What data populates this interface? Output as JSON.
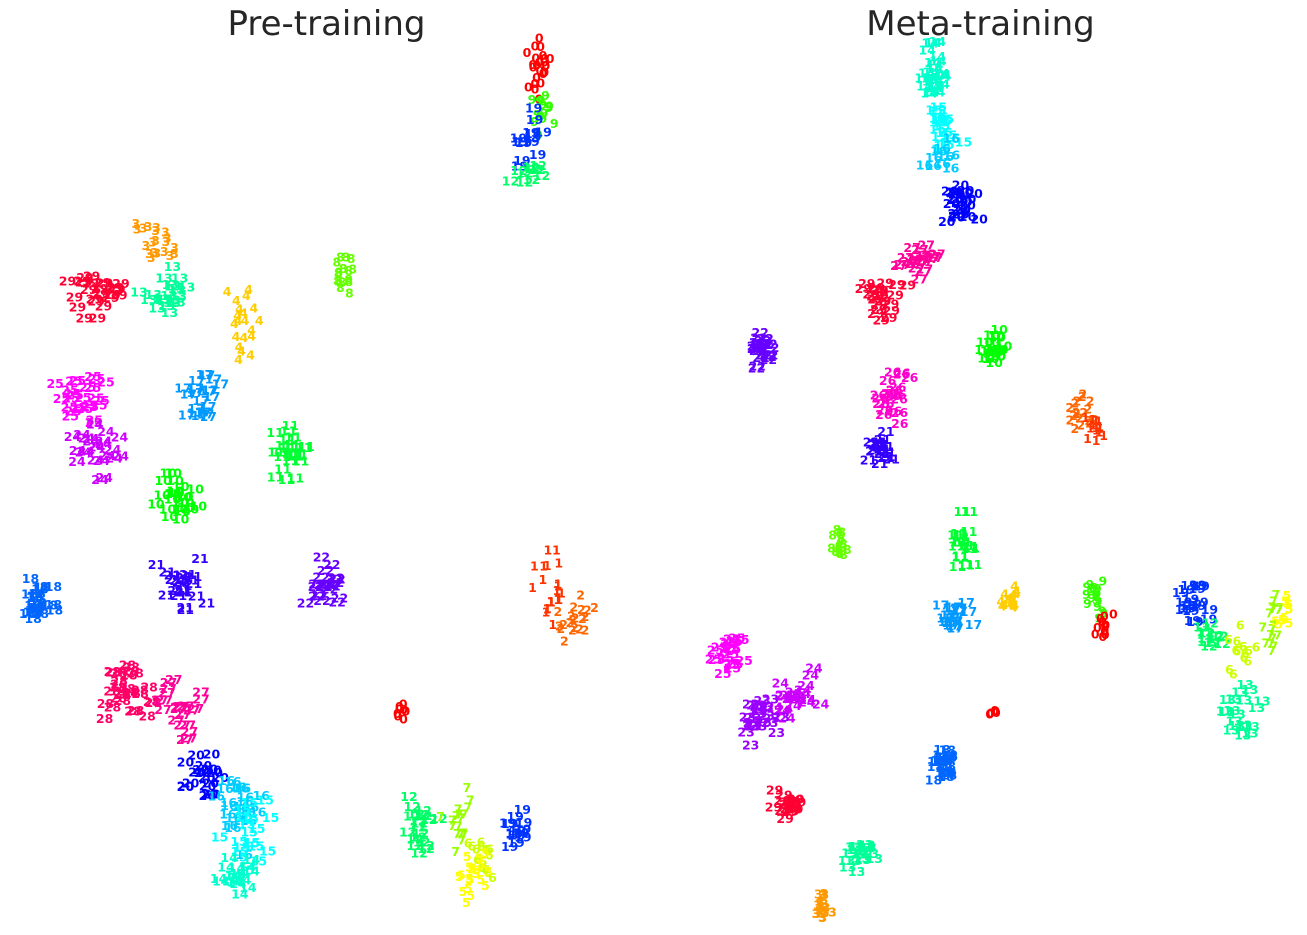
{
  "chart_data": [
    {
      "type": "scatter",
      "title": "Pre-training",
      "xlabel": "",
      "ylabel": "",
      "xlim": [
        0,
        653
      ],
      "ylim": [
        0,
        935
      ],
      "grid": false,
      "legend": "none",
      "mark": "class label digits",
      "clusters": [
        {
          "label": "0",
          "x": 540,
          "y": 65,
          "sx": 10,
          "sy": 28,
          "n": 24
        },
        {
          "label": "9",
          "x": 545,
          "y": 110,
          "sx": 10,
          "sy": 25,
          "n": 14
        },
        {
          "label": "19",
          "x": 525,
          "y": 140,
          "sx": 15,
          "sy": 25,
          "n": 14
        },
        {
          "label": "12",
          "x": 530,
          "y": 175,
          "sx": 15,
          "sy": 15,
          "n": 10
        },
        {
          "label": "3",
          "x": 155,
          "y": 240,
          "sx": 15,
          "sy": 20,
          "n": 20
        },
        {
          "label": "29",
          "x": 100,
          "y": 295,
          "sx": 25,
          "sy": 20,
          "n": 26
        },
        {
          "label": "13",
          "x": 165,
          "y": 290,
          "sx": 20,
          "sy": 22,
          "n": 22
        },
        {
          "label": "4",
          "x": 243,
          "y": 325,
          "sx": 15,
          "sy": 30,
          "n": 20
        },
        {
          "label": "8",
          "x": 345,
          "y": 275,
          "sx": 10,
          "sy": 20,
          "n": 16
        },
        {
          "label": "17",
          "x": 205,
          "y": 395,
          "sx": 18,
          "sy": 25,
          "n": 22
        },
        {
          "label": "25",
          "x": 80,
          "y": 400,
          "sx": 25,
          "sy": 20,
          "n": 26
        },
        {
          "label": "24",
          "x": 100,
          "y": 450,
          "sx": 25,
          "sy": 30,
          "n": 24
        },
        {
          "label": "11",
          "x": 285,
          "y": 450,
          "sx": 17,
          "sy": 25,
          "n": 24
        },
        {
          "label": "10",
          "x": 175,
          "y": 500,
          "sx": 18,
          "sy": 20,
          "n": 24
        },
        {
          "label": "18",
          "x": 35,
          "y": 600,
          "sx": 15,
          "sy": 22,
          "n": 24
        },
        {
          "label": "22",
          "x": 325,
          "y": 580,
          "sx": 15,
          "sy": 22,
          "n": 24
        },
        {
          "label": "21",
          "x": 185,
          "y": 585,
          "sx": 22,
          "sy": 25,
          "n": 24
        },
        {
          "label": "1",
          "x": 550,
          "y": 590,
          "sx": 15,
          "sy": 30,
          "n": 20
        },
        {
          "label": "2",
          "x": 575,
          "y": 620,
          "sx": 15,
          "sy": 25,
          "n": 20
        },
        {
          "label": "28",
          "x": 125,
          "y": 690,
          "sx": 25,
          "sy": 35,
          "n": 30
        },
        {
          "label": "27",
          "x": 175,
          "y": 710,
          "sx": 20,
          "sy": 30,
          "n": 22
        },
        {
          "label": "20",
          "x": 205,
          "y": 770,
          "sx": 15,
          "sy": 30,
          "n": 20
        },
        {
          "label": "16",
          "x": 240,
          "y": 810,
          "sx": 22,
          "sy": 35,
          "n": 24
        },
        {
          "label": "15",
          "x": 245,
          "y": 840,
          "sx": 22,
          "sy": 30,
          "n": 20
        },
        {
          "label": "14",
          "x": 240,
          "y": 880,
          "sx": 18,
          "sy": 20,
          "n": 18
        },
        {
          "label": "0",
          "x": 403,
          "y": 710,
          "sx": 5,
          "sy": 10,
          "n": 8
        },
        {
          "label": "12",
          "x": 425,
          "y": 830,
          "sx": 15,
          "sy": 25,
          "n": 22
        },
        {
          "label": "7",
          "x": 460,
          "y": 820,
          "sx": 15,
          "sy": 25,
          "n": 18
        },
        {
          "label": "19",
          "x": 515,
          "y": 830,
          "sx": 12,
          "sy": 20,
          "n": 14
        },
        {
          "label": "6",
          "x": 480,
          "y": 855,
          "sx": 15,
          "sy": 25,
          "n": 16
        },
        {
          "label": "5",
          "x": 470,
          "y": 880,
          "sx": 18,
          "sy": 20,
          "n": 20
        }
      ]
    },
    {
      "type": "scatter",
      "title": "Meta-training",
      "xlabel": "",
      "ylabel": "",
      "xlim": [
        0,
        653
      ],
      "ylim": [
        0,
        935
      ],
      "grid": false,
      "legend": "none",
      "mark": "class label digits",
      "clusters": [
        {
          "label": "14",
          "x": 285,
          "y": 75,
          "sx": 20,
          "sy": 25,
          "n": 28
        },
        {
          "label": "15",
          "x": 290,
          "y": 130,
          "sx": 15,
          "sy": 25,
          "n": 20
        },
        {
          "label": "16",
          "x": 285,
          "y": 155,
          "sx": 15,
          "sy": 15,
          "n": 10
        },
        {
          "label": "20",
          "x": 307,
          "y": 200,
          "sx": 14,
          "sy": 22,
          "n": 24
        },
        {
          "label": "27",
          "x": 265,
          "y": 265,
          "sx": 18,
          "sy": 20,
          "n": 22
        },
        {
          "label": "29",
          "x": 230,
          "y": 300,
          "sx": 18,
          "sy": 18,
          "n": 22
        },
        {
          "label": "22",
          "x": 110,
          "y": 350,
          "sx": 10,
          "sy": 15,
          "n": 24
        },
        {
          "label": "10",
          "x": 342,
          "y": 350,
          "sx": 10,
          "sy": 15,
          "n": 22
        },
        {
          "label": "26",
          "x": 240,
          "y": 395,
          "sx": 12,
          "sy": 25,
          "n": 22
        },
        {
          "label": "21",
          "x": 228,
          "y": 445,
          "sx": 13,
          "sy": 15,
          "n": 20
        },
        {
          "label": "2",
          "x": 427,
          "y": 410,
          "sx": 12,
          "sy": 18,
          "n": 18
        },
        {
          "label": "1",
          "x": 440,
          "y": 430,
          "sx": 10,
          "sy": 15,
          "n": 14
        },
        {
          "label": "8",
          "x": 185,
          "y": 545,
          "sx": 8,
          "sy": 15,
          "n": 18
        },
        {
          "label": "11",
          "x": 310,
          "y": 545,
          "sx": 10,
          "sy": 25,
          "n": 20
        },
        {
          "label": "4",
          "x": 355,
          "y": 600,
          "sx": 10,
          "sy": 15,
          "n": 16
        },
        {
          "label": "17",
          "x": 300,
          "y": 615,
          "sx": 15,
          "sy": 12,
          "n": 20
        },
        {
          "label": "9",
          "x": 443,
          "y": 600,
          "sx": 10,
          "sy": 20,
          "n": 18
        },
        {
          "label": "0",
          "x": 448,
          "y": 630,
          "sx": 10,
          "sy": 15,
          "n": 12
        },
        {
          "label": "19",
          "x": 540,
          "y": 605,
          "sx": 12,
          "sy": 20,
          "n": 20
        },
        {
          "label": "12",
          "x": 555,
          "y": 640,
          "sx": 10,
          "sy": 15,
          "n": 12
        },
        {
          "label": "7",
          "x": 620,
          "y": 625,
          "sx": 12,
          "sy": 25,
          "n": 18
        },
        {
          "label": "5",
          "x": 630,
          "y": 610,
          "sx": 8,
          "sy": 20,
          "n": 12
        },
        {
          "label": "6",
          "x": 590,
          "y": 650,
          "sx": 12,
          "sy": 20,
          "n": 14
        },
        {
          "label": "13",
          "x": 590,
          "y": 710,
          "sx": 15,
          "sy": 20,
          "n": 20
        },
        {
          "label": "25",
          "x": 75,
          "y": 655,
          "sx": 15,
          "sy": 15,
          "n": 22
        },
        {
          "label": "24",
          "x": 145,
          "y": 695,
          "sx": 20,
          "sy": 20,
          "n": 22
        },
        {
          "label": "23",
          "x": 110,
          "y": 720,
          "sx": 20,
          "sy": 20,
          "n": 24
        },
        {
          "label": "0",
          "x": 338,
          "y": 710,
          "sx": 4,
          "sy": 6,
          "n": 5
        },
        {
          "label": "18",
          "x": 290,
          "y": 765,
          "sx": 10,
          "sy": 15,
          "n": 22
        },
        {
          "label": "29",
          "x": 135,
          "y": 805,
          "sx": 12,
          "sy": 12,
          "n": 20
        },
        {
          "label": "13",
          "x": 205,
          "y": 855,
          "sx": 15,
          "sy": 15,
          "n": 22
        },
        {
          "label": "3",
          "x": 170,
          "y": 905,
          "sx": 10,
          "sy": 15,
          "n": 20
        }
      ]
    }
  ]
}
